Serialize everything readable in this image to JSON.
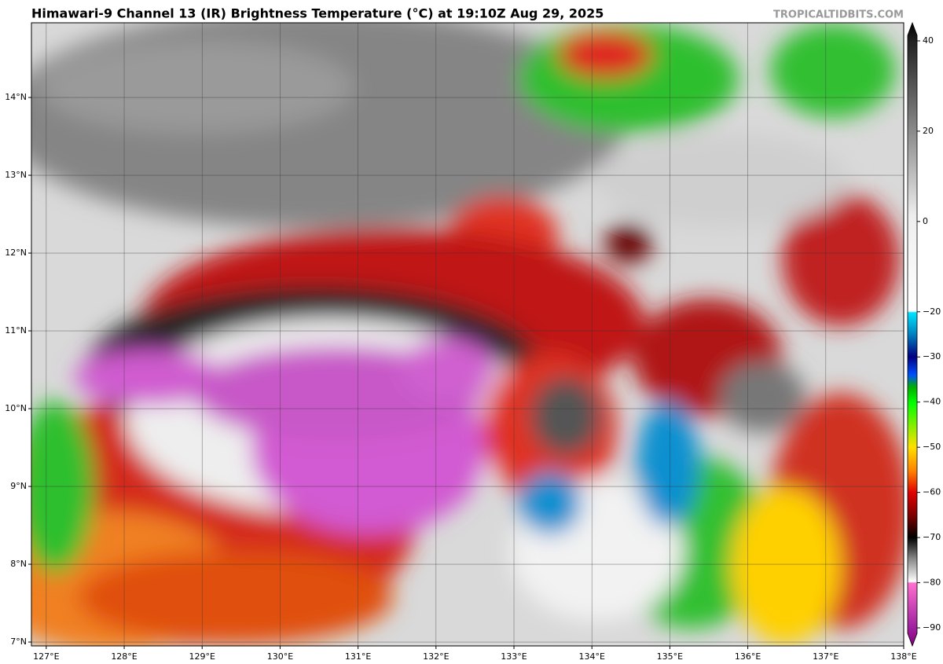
{
  "map": {
    "title": "Himawari-9 Channel 13 (IR) Brightness Temperature (°C) at 19:10Z Aug 29, 2025",
    "watermark": "TROPICALTIDBITS.COM",
    "xlim": [
      126.81,
      138
    ],
    "ylim": [
      6.95,
      14.96
    ],
    "xticks": [
      {
        "value": 127,
        "label": "127°E"
      },
      {
        "value": 128,
        "label": "128°E"
      },
      {
        "value": 129,
        "label": "129°E"
      },
      {
        "value": 130,
        "label": "130°E"
      },
      {
        "value": 131,
        "label": "131°E"
      },
      {
        "value": 132,
        "label": "132°E"
      },
      {
        "value": 133,
        "label": "133°E"
      },
      {
        "value": 134,
        "label": "134°E"
      },
      {
        "value": 135,
        "label": "135°E"
      },
      {
        "value": 136,
        "label": "136°E"
      },
      {
        "value": 137,
        "label": "137°E"
      },
      {
        "value": 138,
        "label": "138°E"
      }
    ],
    "yticks": [
      {
        "value": 7,
        "label": "7°N"
      },
      {
        "value": 8,
        "label": "8°N"
      },
      {
        "value": 9,
        "label": "9°N"
      },
      {
        "value": 10,
        "label": "10°N"
      },
      {
        "value": 11,
        "label": "11°N"
      },
      {
        "value": 12,
        "label": "12°N"
      },
      {
        "value": 13,
        "label": "13°N"
      },
      {
        "value": 14,
        "label": "14°N"
      }
    ],
    "grid": true,
    "colorbar": {
      "lim": [
        -94,
        44
      ],
      "ticks": [
        40,
        20,
        0,
        {
          "value": -20,
          "label": "−20"
        },
        {
          "value": -30,
          "label": "−30"
        },
        {
          "value": -40,
          "label": "−40"
        },
        {
          "value": -50,
          "label": "−50"
        },
        {
          "value": -60,
          "label": "−60"
        },
        {
          "value": -70,
          "label": "−70"
        },
        {
          "value": -80,
          "label": "−80"
        },
        {
          "value": -90,
          "label": "−90"
        }
      ]
    }
  }
}
